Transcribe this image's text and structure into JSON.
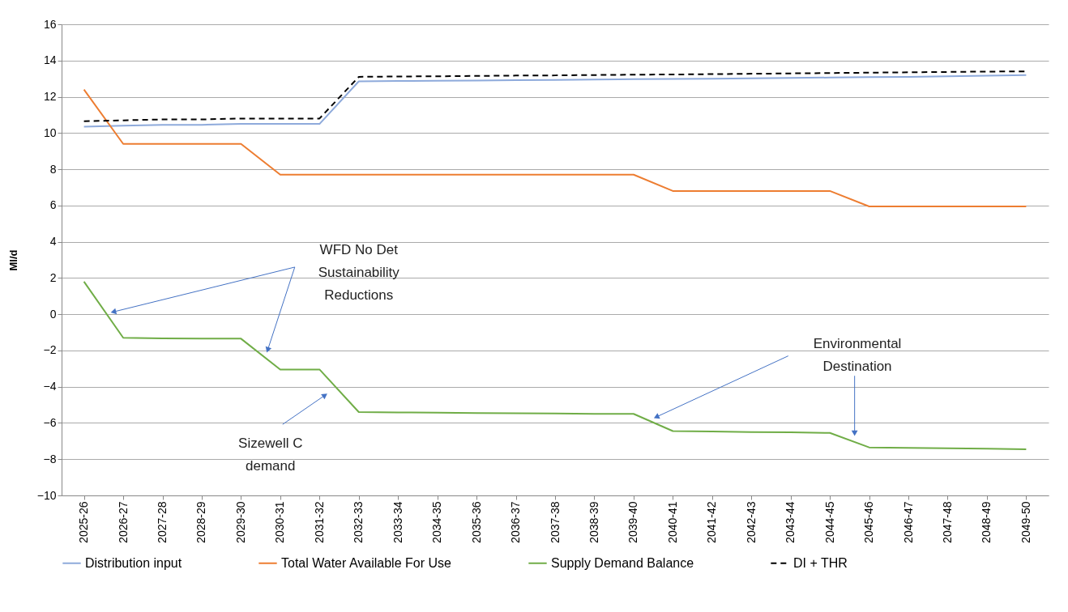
{
  "chart_data": {
    "type": "line",
    "categories": [
      "2025-26",
      "2026-27",
      "2027-28",
      "2028-29",
      "2029-30",
      "2030-31",
      "2031-32",
      "2032-33",
      "2033-34",
      "2034-35",
      "2035-36",
      "2036-37",
      "2037-38",
      "2038-39",
      "2039-40",
      "2040-41",
      "2041-42",
      "2042-43",
      "2043-44",
      "2044-45",
      "2045-46",
      "2046-47",
      "2047-48",
      "2048-49",
      "2049-50"
    ],
    "ylabel": "Ml/d",
    "ylim": [
      -10,
      16
    ],
    "yticks": [
      -10,
      -8,
      -6,
      -4,
      -2,
      0,
      2,
      4,
      6,
      8,
      10,
      12,
      14,
      16
    ],
    "grid": "y",
    "legend": "bottom",
    "series": [
      {
        "name": "Distribution input",
        "color": "#8eaadb",
        "line_style": "solid",
        "values": [
          10.35,
          10.4,
          10.45,
          10.45,
          10.5,
          10.5,
          10.5,
          12.85,
          12.87,
          12.88,
          12.9,
          12.92,
          12.93,
          12.95,
          12.97,
          12.98,
          13.0,
          13.02,
          13.04,
          13.06,
          13.08,
          13.1,
          13.13,
          13.16,
          13.2
        ]
      },
      {
        "name": "Total Water Available For Use",
        "color": "#ed7d31",
        "line_style": "solid",
        "values": [
          12.4,
          9.4,
          9.4,
          9.4,
          9.4,
          7.7,
          7.7,
          7.7,
          7.7,
          7.7,
          7.7,
          7.7,
          7.7,
          7.7,
          7.7,
          6.8,
          6.8,
          6.8,
          6.8,
          6.8,
          5.95,
          5.95,
          5.95,
          5.95,
          5.95
        ]
      },
      {
        "name": "Supply Demand Balance",
        "color": "#70ad47",
        "line_style": "solid",
        "values": [
          1.8,
          -1.3,
          -1.33,
          -1.35,
          -1.35,
          -3.05,
          -3.05,
          -5.4,
          -5.42,
          -5.43,
          -5.45,
          -5.47,
          -5.48,
          -5.5,
          -5.5,
          -6.45,
          -6.47,
          -6.5,
          -6.52,
          -6.55,
          -7.35,
          -7.37,
          -7.4,
          -7.42,
          -7.45
        ]
      },
      {
        "name": "DI + THR",
        "color": "#000000",
        "line_style": "dashed",
        "values": [
          10.65,
          10.7,
          10.75,
          10.75,
          10.8,
          10.8,
          10.8,
          13.1,
          13.12,
          13.13,
          13.15,
          13.17,
          13.18,
          13.2,
          13.22,
          13.23,
          13.25,
          13.27,
          13.29,
          13.31,
          13.33,
          13.35,
          13.37,
          13.39,
          13.4
        ]
      }
    ],
    "annotations": [
      "WFD No Det Sustainability Reductions",
      "Sizewell C demand",
      "Environmental Destination"
    ]
  }
}
